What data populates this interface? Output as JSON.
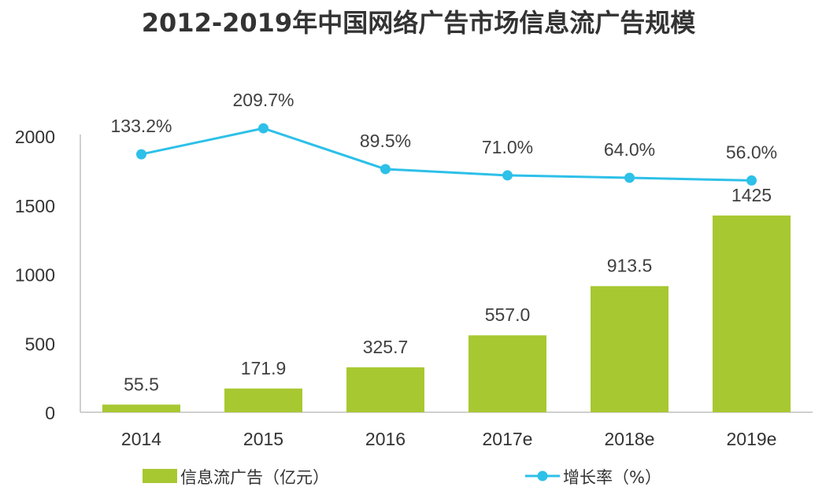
{
  "colors": {
    "bar": "#A8C832",
    "line": "#2DC0E8",
    "axis": "#BFBFBF",
    "text": "#333333"
  },
  "chart_data": {
    "type": "bar",
    "title": "2012-2019年中国网络广告市场信息流广告规模",
    "categories": [
      "2014",
      "2015",
      "2016",
      "2017e",
      "2018e",
      "2019e"
    ],
    "ylim": [
      0,
      2000
    ],
    "yticks": [
      0,
      500,
      1000,
      1500,
      2000
    ],
    "grid": false,
    "legend_position": "bottom",
    "series": [
      {
        "name": "信息流广告（亿元）",
        "type": "bar",
        "values": [
          55.5,
          171.9,
          325.7,
          557.0,
          913.5,
          1425
        ],
        "labels": [
          "55.5",
          "171.9",
          "325.7",
          "557.0",
          "913.5",
          "1425"
        ]
      },
      {
        "name": "增长率（%）",
        "type": "line",
        "values": [
          133.2,
          209.7,
          89.5,
          71.0,
          64.0,
          56.0
        ],
        "labels": [
          "133.2%",
          "209.7%",
          "89.5%",
          "71.0%",
          "64.0%",
          "56.0%"
        ]
      }
    ]
  }
}
